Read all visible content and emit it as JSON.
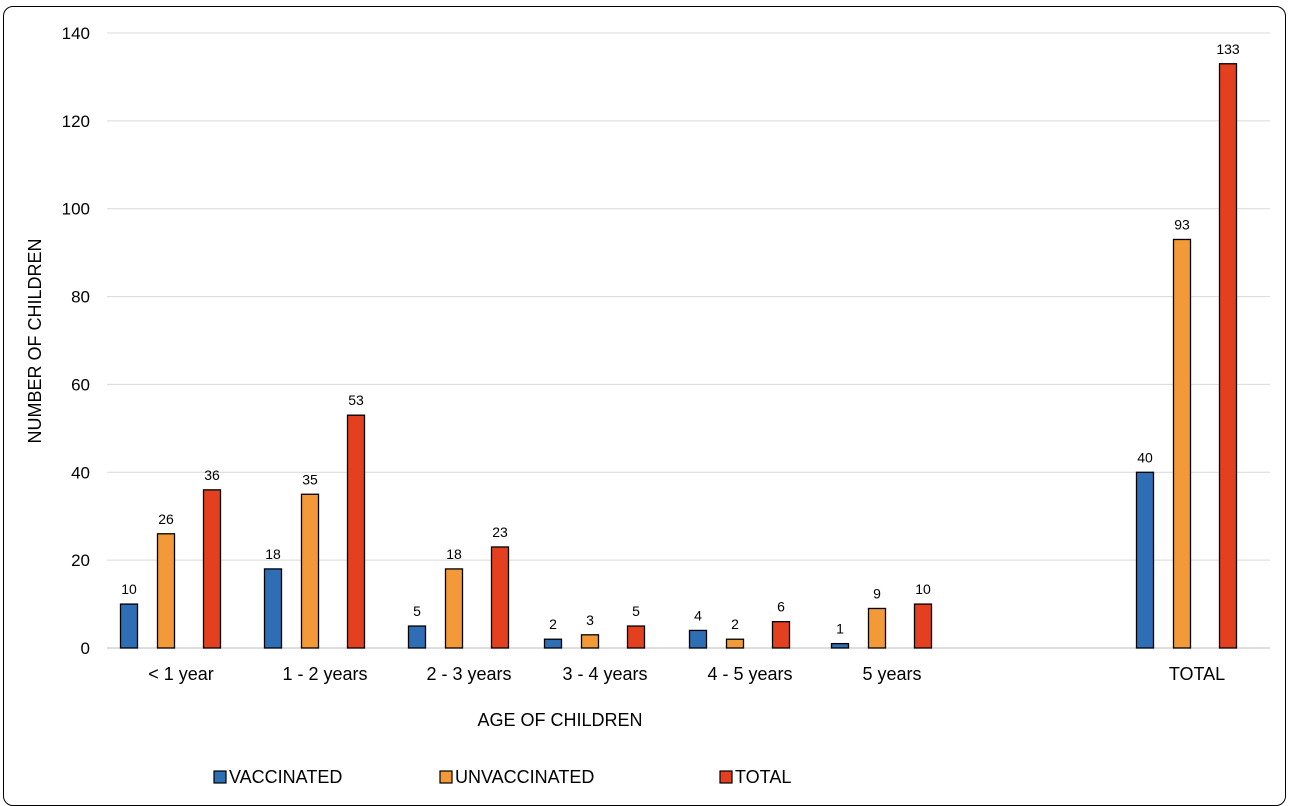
{
  "chart_data": {
    "type": "bar",
    "categories": [
      "< 1 year",
      "1 - 2 years",
      "2 - 3 years",
      "3 - 4 years",
      "4 - 5 years",
      "5 years",
      "TOTAL"
    ],
    "series": [
      {
        "name": "VACCINATED",
        "color": "#2e6eb5",
        "values": [
          10,
          18,
          5,
          2,
          4,
          1,
          40
        ]
      },
      {
        "name": "UNVACCINATED",
        "color": "#f39a38",
        "values": [
          26,
          35,
          18,
          3,
          2,
          9,
          93
        ]
      },
      {
        "name": "TOTAL",
        "color": "#e2401f",
        "values": [
          36,
          53,
          23,
          5,
          6,
          10,
          133
        ]
      }
    ],
    "xlabel": "AGE OF CHILDREN",
    "ylabel": "NUMBER OF CHILDREN",
    "ylim": [
      0,
      140
    ],
    "yticks": [
      0,
      20,
      40,
      60,
      80,
      100,
      120,
      140
    ],
    "grid": true,
    "legend": "bottom",
    "data_labels": true
  }
}
